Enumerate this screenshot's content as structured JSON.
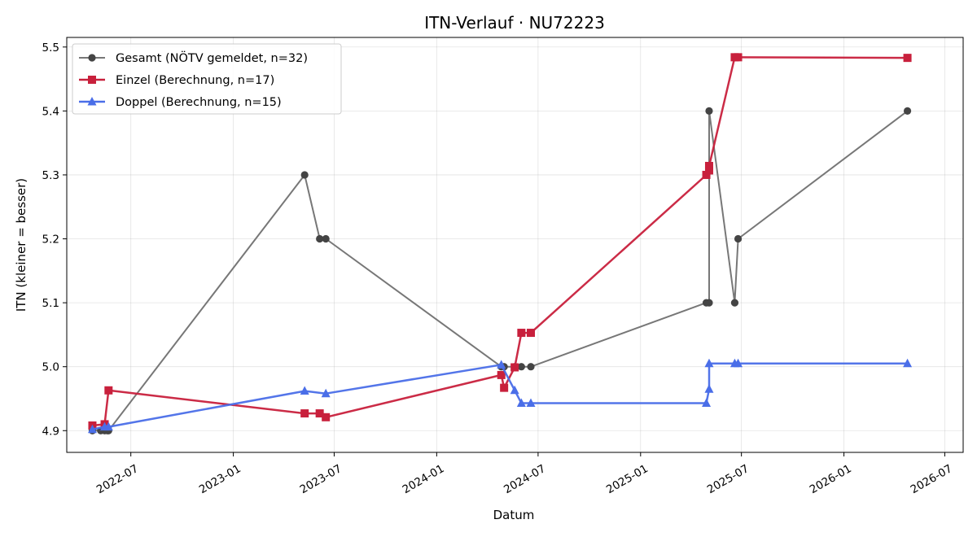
{
  "chart_data": {
    "type": "line",
    "title": "ITN-Verlauf · NU72223",
    "xlabel": "Datum",
    "ylabel": "ITN  (kleiner = besser)",
    "x_type": "date",
    "xlim": [
      "2022-03-08",
      "2026-08-03"
    ],
    "ylim": [
      4.866,
      5.515
    ],
    "x_ticks": [
      "2022-07",
      "2023-01",
      "2023-07",
      "2024-01",
      "2024-07",
      "2025-01",
      "2025-07",
      "2026-01",
      "2026-07"
    ],
    "y_ticks": [
      4.9,
      5.0,
      5.1,
      5.2,
      5.3,
      5.4,
      5.5
    ],
    "grid": true,
    "legend_position": "upper-left",
    "series": [
      {
        "name": "Gesamt (NÖTV gemeldet, n=32)",
        "color": "#444444",
        "line_color": "#777777",
        "marker": "circle",
        "points": [
          {
            "x": "2022-04-23",
            "y": 4.9
          },
          {
            "x": "2022-05-08",
            "y": 4.9
          },
          {
            "x": "2022-05-15",
            "y": 4.9
          },
          {
            "x": "2022-05-20",
            "y": 4.9
          },
          {
            "x": "2022-05-22",
            "y": 4.9
          },
          {
            "x": "2023-05-09",
            "y": 5.3
          },
          {
            "x": "2023-06-05",
            "y": 5.2
          },
          {
            "x": "2023-06-16",
            "y": 5.2
          },
          {
            "x": "2024-04-26",
            "y": 5.0
          },
          {
            "x": "2024-05-01",
            "y": 5.0
          },
          {
            "x": "2024-05-20",
            "y": 5.0
          },
          {
            "x": "2024-06-01",
            "y": 5.0
          },
          {
            "x": "2024-06-18",
            "y": 5.0
          },
          {
            "x": "2025-04-29",
            "y": 5.1
          },
          {
            "x": "2025-05-04",
            "y": 5.1
          },
          {
            "x": "2025-05-04",
            "y": 5.4
          },
          {
            "x": "2025-06-19",
            "y": 5.1
          },
          {
            "x": "2025-06-25",
            "y": 5.2
          },
          {
            "x": "2026-04-25",
            "y": 5.4
          }
        ]
      },
      {
        "name": "Einzel (Berechnung, n=17)",
        "color": "#c8203c",
        "line_color": "#c8203c",
        "marker": "square",
        "points": [
          {
            "x": "2022-04-23",
            "y": 4.908
          },
          {
            "x": "2022-05-15",
            "y": 4.91
          },
          {
            "x": "2022-05-22",
            "y": 4.963
          },
          {
            "x": "2023-05-09",
            "y": 4.927
          },
          {
            "x": "2023-06-05",
            "y": 4.927
          },
          {
            "x": "2023-06-16",
            "y": 4.921
          },
          {
            "x": "2024-04-26",
            "y": 4.987
          },
          {
            "x": "2024-05-01",
            "y": 4.967
          },
          {
            "x": "2024-05-20",
            "y": 4.999
          },
          {
            "x": "2024-06-01",
            "y": 5.053
          },
          {
            "x": "2024-06-18",
            "y": 5.053
          },
          {
            "x": "2025-04-29",
            "y": 5.3
          },
          {
            "x": "2025-05-04",
            "y": 5.307
          },
          {
            "x": "2025-05-04",
            "y": 5.314
          },
          {
            "x": "2025-06-19",
            "y": 5.484
          },
          {
            "x": "2025-06-25",
            "y": 5.484
          },
          {
            "x": "2026-04-25",
            "y": 5.483
          }
        ]
      },
      {
        "name": "Doppel (Berechnung, n=15)",
        "color": "#4a6ee8",
        "line_color": "#4a6ee8",
        "marker": "triangle",
        "points": [
          {
            "x": "2022-04-23",
            "y": 4.902
          },
          {
            "x": "2022-05-15",
            "y": 4.906
          },
          {
            "x": "2022-05-22",
            "y": 4.906
          },
          {
            "x": "2023-05-09",
            "y": 4.962
          },
          {
            "x": "2023-06-16",
            "y": 4.958
          },
          {
            "x": "2024-04-26",
            "y": 5.003
          },
          {
            "x": "2024-05-20",
            "y": 4.963
          },
          {
            "x": "2024-06-01",
            "y": 4.943
          },
          {
            "x": "2024-06-18",
            "y": 4.943
          },
          {
            "x": "2025-04-29",
            "y": 4.943
          },
          {
            "x": "2025-05-04",
            "y": 4.965
          },
          {
            "x": "2025-05-04",
            "y": 5.005
          },
          {
            "x": "2025-06-19",
            "y": 5.005
          },
          {
            "x": "2025-06-25",
            "y": 5.005
          },
          {
            "x": "2026-04-25",
            "y": 5.005
          }
        ]
      }
    ]
  }
}
